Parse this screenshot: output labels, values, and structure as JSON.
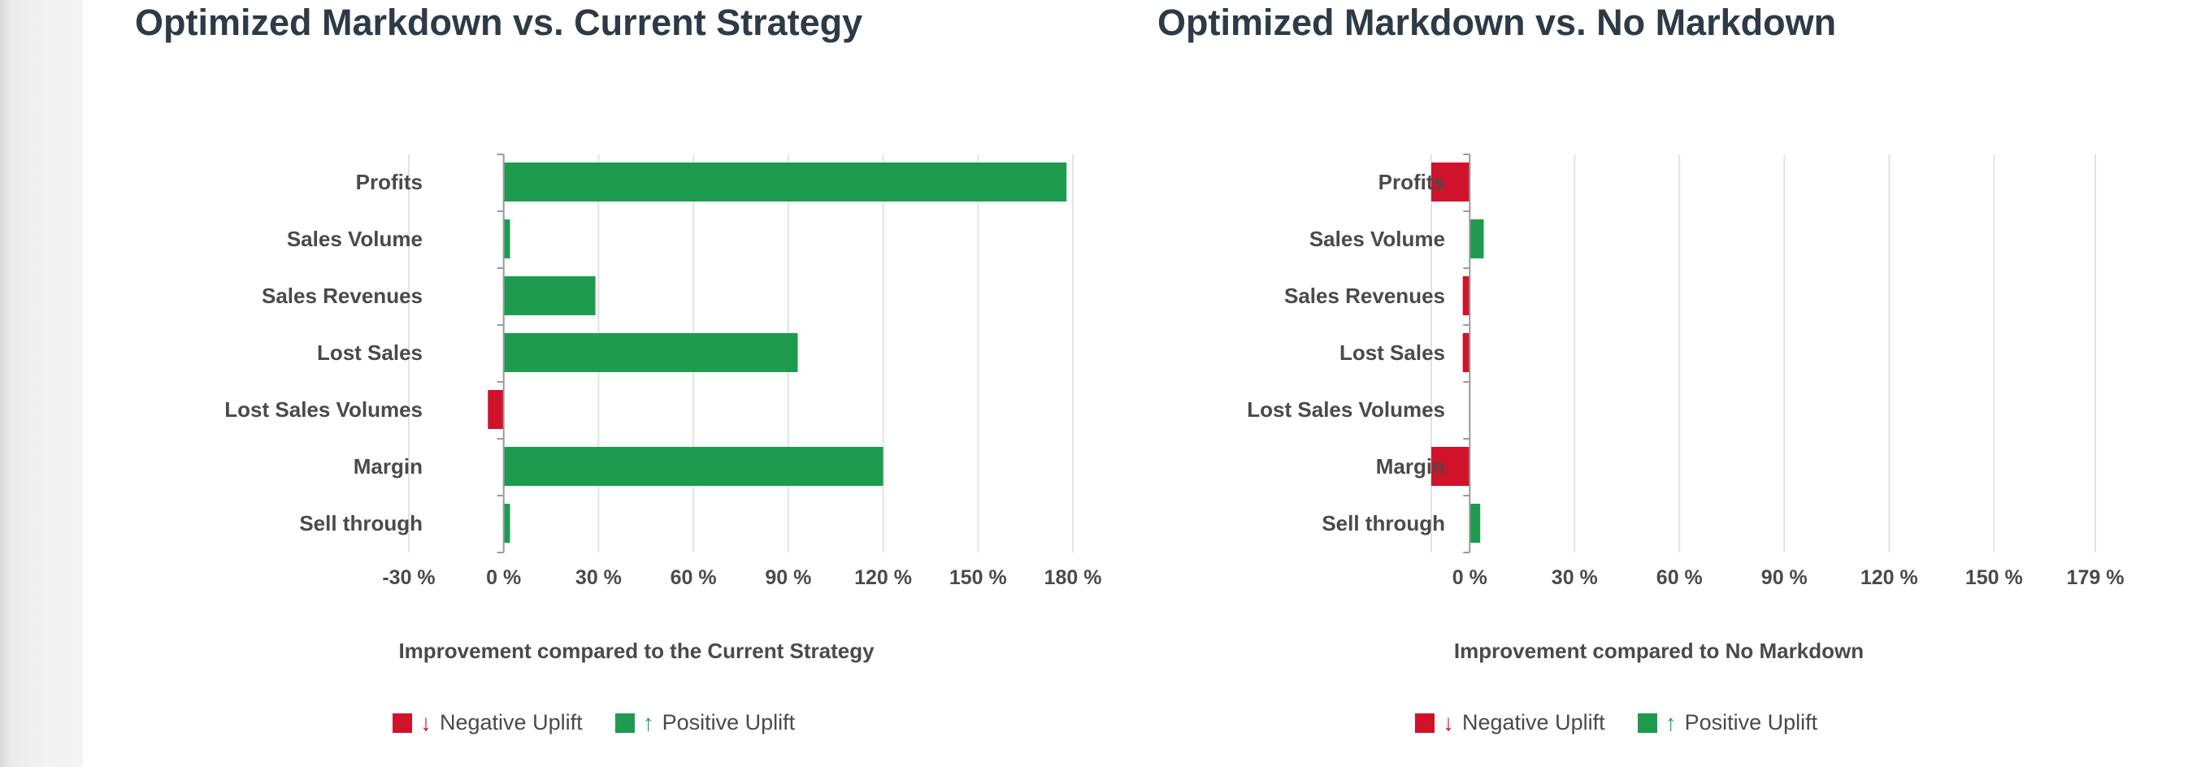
{
  "colors": {
    "positive": "#1e9b4f",
    "negative": "#d0132a",
    "grid": "#e3e3e3",
    "axis": "#9a9a9a",
    "text": "#4a4a4a",
    "title": "#2e3a46"
  },
  "legend": [
    {
      "label": "Negative Uplift",
      "arrow": "↓",
      "color": "#d0132a"
    },
    {
      "label": "Positive Uplift",
      "arrow": "↑",
      "color": "#1e9b4f"
    }
  ],
  "chart_data": [
    {
      "type": "bar",
      "orientation": "horizontal",
      "title": "Optimized Markdown vs. Current Strategy",
      "xlabel": "Improvement compared to the Current Strategy",
      "ylabel": "",
      "categories": [
        "Profits",
        "Sales Volume",
        "Sales Revenues",
        "Lost Sales",
        "Lost Sales Volumes",
        "Margin",
        "Sell through"
      ],
      "values": [
        178,
        2,
        29,
        93,
        -5,
        120,
        2
      ],
      "xlim": [
        -30,
        180
      ],
      "xticks": [
        -30,
        0,
        30,
        60,
        90,
        120,
        150,
        180
      ],
      "xtick_labels": [
        "-30 %",
        "0 %",
        "30 %",
        "60 %",
        "90 %",
        "120 %",
        "150 %",
        "180 %"
      ],
      "grid": true,
      "legend_position": "bottom-center"
    },
    {
      "type": "bar",
      "orientation": "horizontal",
      "title": "Optimized Markdown vs. No Markdown",
      "xlabel": "Improvement compared to No Markdown",
      "ylabel": "",
      "categories": [
        "Profits",
        "Sales Volume",
        "Sales Revenues",
        "Lost Sales",
        "Lost Sales Volumes",
        "Margin",
        "Sell through"
      ],
      "values": [
        -11,
        4,
        -2,
        -2,
        0,
        -11,
        3
      ],
      "xlim": [
        -11,
        179
      ],
      "xticks": [
        0,
        30,
        60,
        90,
        120,
        150,
        179
      ],
      "xtick_labels": [
        "0 %",
        "30 %",
        "60 %",
        "90 %",
        "120 %",
        "150 %",
        "179 %"
      ],
      "grid": true,
      "legend_position": "bottom-center"
    }
  ]
}
